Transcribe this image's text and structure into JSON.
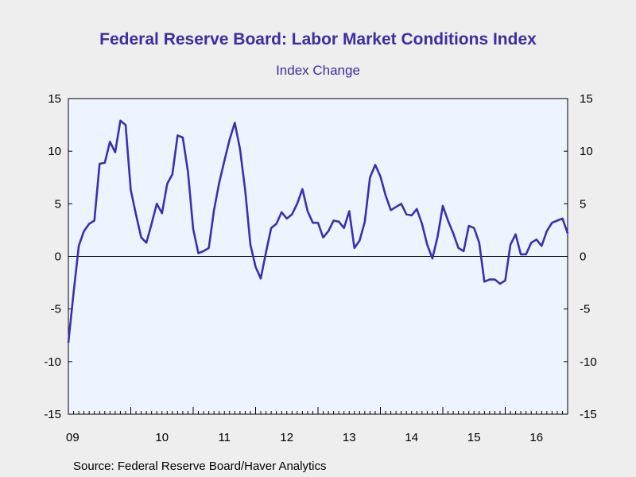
{
  "chart_data": {
    "type": "line",
    "title": "Federal Reserve Board: Labor Market Conditions Index",
    "subtitle": "Index Change",
    "source": "Source:  Federal Reserve Board/Haver Analytics",
    "ylim": [
      -15,
      15
    ],
    "yticks": [
      "15",
      "10",
      "5",
      "0",
      "-5",
      "-10",
      "-15"
    ],
    "ytick_values": [
      15,
      10,
      5,
      0,
      -5,
      -10,
      -15
    ],
    "xtick_labels": [
      "09",
      "10",
      "11",
      "12",
      "13",
      "14",
      "15",
      "16"
    ],
    "x_start": "2009-01",
    "grid": false,
    "zero_line": true,
    "colors": {
      "line": "#3d2eb0",
      "plot_bg": "#eef4ff",
      "title": "#3d2e9e"
    },
    "series": [
      {
        "values": [
          -8.2,
          -3.5,
          1.0,
          2.4,
          3.1,
          3.4,
          8.8,
          8.9,
          10.9,
          9.9,
          12.9,
          12.5,
          6.3,
          4.0,
          1.8,
          1.3,
          3.1,
          5.0,
          4.1,
          6.9,
          7.8,
          11.5,
          11.3,
          8.0,
          2.6,
          0.3,
          0.5,
          0.8,
          4.4,
          7.0,
          9.1,
          11.1,
          12.7,
          10.2,
          6.3,
          1.1,
          -1.0,
          -2.1,
          0.4,
          2.7,
          3.1,
          4.2,
          3.6,
          4.0,
          5.0,
          6.4,
          4.3,
          3.2,
          3.2,
          1.8,
          2.4,
          3.4,
          3.3,
          2.7,
          4.3,
          0.8,
          1.5,
          3.3,
          7.5,
          8.7,
          7.6,
          5.8,
          4.4,
          4.7,
          5.0,
          4.0,
          3.9,
          4.5,
          3.1,
          1.1,
          -0.2,
          1.9,
          4.8,
          3.4,
          2.2,
          0.8,
          0.5,
          2.9,
          2.7,
          1.3,
          -2.4,
          -2.2,
          -2.2,
          -2.6,
          -2.3,
          1.1,
          2.1,
          0.2,
          0.2,
          1.3,
          1.6,
          1.0,
          2.4,
          3.2,
          3.4,
          3.6,
          2.2
        ]
      }
    ]
  }
}
